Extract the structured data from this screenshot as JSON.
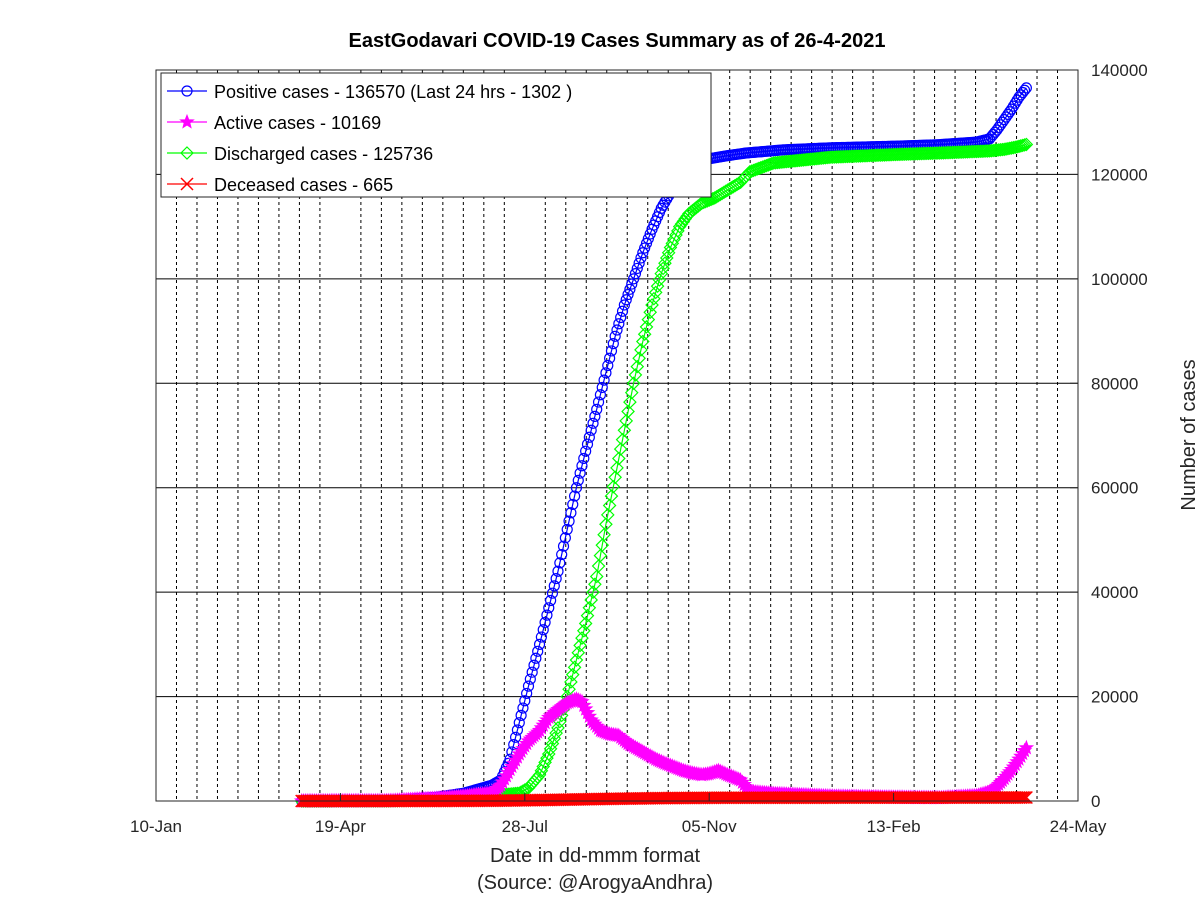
{
  "chart_data": {
    "type": "line",
    "title": "EastGodavari COVID-19 Cases Summary as of 26-4-2021",
    "xlabel": "Date in dd-mmm format",
    "source_note": "(Source: @ArogyaAndhra)",
    "ylabel": "Number of cases",
    "x_axis": {
      "type": "date",
      "range": [
        "2020-01-10",
        "2021-05-24"
      ],
      "tick_dates": [
        "2020-01-10",
        "2020-04-19",
        "2020-07-28",
        "2020-11-05",
        "2021-02-13",
        "2021-05-24"
      ],
      "tick_labels": [
        "10-Jan",
        "19-Apr",
        "28-Jul",
        "05-Nov",
        "13-Feb",
        "24-May"
      ],
      "minor_grid": "dotted, every ~11 days"
    },
    "y_axis": {
      "position": "right",
      "range": [
        0,
        140000
      ],
      "ticks": [
        0,
        20000,
        40000,
        60000,
        80000,
        100000,
        120000,
        140000
      ],
      "tick_labels": [
        "0",
        "20000",
        "40000",
        "60000",
        "80000",
        "100000",
        "120000",
        "140000"
      ]
    },
    "grid": true,
    "legend_position": "top-left",
    "series": [
      {
        "name": "Positive cases - 136570 (Last 24 hrs - 1302 )",
        "color": "#0000ff",
        "marker": "circle",
        "points": [
          [
            "2020-03-29",
            0
          ],
          [
            "2020-05-15",
            50
          ],
          [
            "2020-06-10",
            700
          ],
          [
            "2020-06-25",
            1500
          ],
          [
            "2020-07-10",
            3000
          ],
          [
            "2020-07-15",
            4000
          ],
          [
            "2020-07-20",
            8000
          ],
          [
            "2020-07-25",
            15000
          ],
          [
            "2020-07-30",
            22000
          ],
          [
            "2020-08-05",
            30000
          ],
          [
            "2020-08-10",
            37000
          ],
          [
            "2020-08-15",
            44000
          ],
          [
            "2020-08-20",
            52000
          ],
          [
            "2020-08-25",
            60000
          ],
          [
            "2020-08-30",
            67000
          ],
          [
            "2020-09-05",
            75000
          ],
          [
            "2020-09-10",
            82000
          ],
          [
            "2020-09-15",
            89000
          ],
          [
            "2020-09-20",
            95000
          ],
          [
            "2020-09-25",
            100000
          ],
          [
            "2020-09-30",
            105000
          ],
          [
            "2020-10-05",
            109500
          ],
          [
            "2020-10-10",
            113500
          ],
          [
            "2020-10-15",
            116500
          ],
          [
            "2020-10-20",
            119000
          ],
          [
            "2020-10-25",
            121000
          ],
          [
            "2020-10-30",
            122000
          ],
          [
            "2020-11-05",
            123000
          ],
          [
            "2020-11-15",
            123600
          ],
          [
            "2020-11-25",
            124100
          ],
          [
            "2020-12-15",
            124700
          ],
          [
            "2021-01-10",
            125100
          ],
          [
            "2021-02-13",
            125400
          ],
          [
            "2021-03-10",
            125700
          ],
          [
            "2021-03-30",
            126200
          ],
          [
            "2021-04-06",
            126800
          ],
          [
            "2021-04-10",
            128500
          ],
          [
            "2021-04-14",
            130500
          ],
          [
            "2021-04-18",
            132500
          ],
          [
            "2021-04-22",
            134800
          ],
          [
            "2021-04-26",
            136570
          ]
        ]
      },
      {
        "name": "Active cases - 10169",
        "color": "#ff00ff",
        "marker": "star",
        "points": [
          [
            "2020-03-29",
            0
          ],
          [
            "2020-05-15",
            30
          ],
          [
            "2020-06-10",
            500
          ],
          [
            "2020-06-25",
            900
          ],
          [
            "2020-07-10",
            1500
          ],
          [
            "2020-07-15",
            3000
          ],
          [
            "2020-07-20",
            6000
          ],
          [
            "2020-07-25",
            9000
          ],
          [
            "2020-07-30",
            11500
          ],
          [
            "2020-08-05",
            13500
          ],
          [
            "2020-08-10",
            16000
          ],
          [
            "2020-08-15",
            17500
          ],
          [
            "2020-08-20",
            18800
          ],
          [
            "2020-08-25",
            19500
          ],
          [
            "2020-08-28",
            19000
          ],
          [
            "2020-09-02",
            15500
          ],
          [
            "2020-09-07",
            13500
          ],
          [
            "2020-09-12",
            12800
          ],
          [
            "2020-09-17",
            12500
          ],
          [
            "2020-09-22",
            11000
          ],
          [
            "2020-09-27",
            10000
          ],
          [
            "2020-10-02",
            9000
          ],
          [
            "2020-10-07",
            8000
          ],
          [
            "2020-10-12",
            7200
          ],
          [
            "2020-10-17",
            6500
          ],
          [
            "2020-10-22",
            5800
          ],
          [
            "2020-10-27",
            5300
          ],
          [
            "2020-11-01",
            5000
          ],
          [
            "2020-11-05",
            5200
          ],
          [
            "2020-11-10",
            5800
          ],
          [
            "2020-11-15",
            5000
          ],
          [
            "2020-11-22",
            4000
          ],
          [
            "2020-11-27",
            1800
          ],
          [
            "2020-12-10",
            1400
          ],
          [
            "2021-01-10",
            900
          ],
          [
            "2021-02-13",
            700
          ],
          [
            "2021-03-10",
            600
          ],
          [
            "2021-03-30",
            1000
          ],
          [
            "2021-04-06",
            1700
          ],
          [
            "2021-04-10",
            2800
          ],
          [
            "2021-04-14",
            4300
          ],
          [
            "2021-04-18",
            6000
          ],
          [
            "2021-04-22",
            8000
          ],
          [
            "2021-04-26",
            10169
          ]
        ]
      },
      {
        "name": "Discharged cases - 125736",
        "color": "#00ff00",
        "marker": "diamond",
        "points": [
          [
            "2020-03-29",
            0
          ],
          [
            "2020-05-15",
            20
          ],
          [
            "2020-06-10",
            200
          ],
          [
            "2020-06-25",
            600
          ],
          [
            "2020-07-10",
            1000
          ],
          [
            "2020-07-25",
            1500
          ],
          [
            "2020-07-30",
            2500
          ],
          [
            "2020-08-05",
            5000
          ],
          [
            "2020-08-10",
            9000
          ],
          [
            "2020-08-15",
            14000
          ],
          [
            "2020-08-20",
            20000
          ],
          [
            "2020-08-25",
            27000
          ],
          [
            "2020-08-30",
            34000
          ],
          [
            "2020-09-05",
            43000
          ],
          [
            "2020-09-10",
            53000
          ],
          [
            "2020-09-15",
            62000
          ],
          [
            "2020-09-20",
            71000
          ],
          [
            "2020-09-25",
            80000
          ],
          [
            "2020-09-30",
            88000
          ],
          [
            "2020-10-05",
            95000
          ],
          [
            "2020-10-10",
            101000
          ],
          [
            "2020-10-15",
            106000
          ],
          [
            "2020-10-20",
            110000
          ],
          [
            "2020-10-25",
            112500
          ],
          [
            "2020-11-01",
            114500
          ],
          [
            "2020-11-08",
            115500
          ],
          [
            "2020-11-15",
            117000
          ],
          [
            "2020-11-22",
            118500
          ],
          [
            "2020-11-27",
            120500
          ],
          [
            "2020-12-10",
            122200
          ],
          [
            "2021-01-10",
            123300
          ],
          [
            "2021-02-13",
            123800
          ],
          [
            "2021-03-10",
            124100
          ],
          [
            "2021-04-06",
            124500
          ],
          [
            "2021-04-14",
            124800
          ],
          [
            "2021-04-20",
            125200
          ],
          [
            "2021-04-26",
            125736
          ]
        ]
      },
      {
        "name": "Deceased cases - 665",
        "color": "#ff0000",
        "marker": "x",
        "points": [
          [
            "2020-03-29",
            0
          ],
          [
            "2020-06-10",
            10
          ],
          [
            "2020-07-10",
            50
          ],
          [
            "2020-08-10",
            200
          ],
          [
            "2020-09-10",
            400
          ],
          [
            "2020-10-10",
            550
          ],
          [
            "2020-11-10",
            620
          ],
          [
            "2021-01-10",
            640
          ],
          [
            "2021-03-10",
            650
          ],
          [
            "2021-04-26",
            665
          ]
        ]
      }
    ]
  }
}
